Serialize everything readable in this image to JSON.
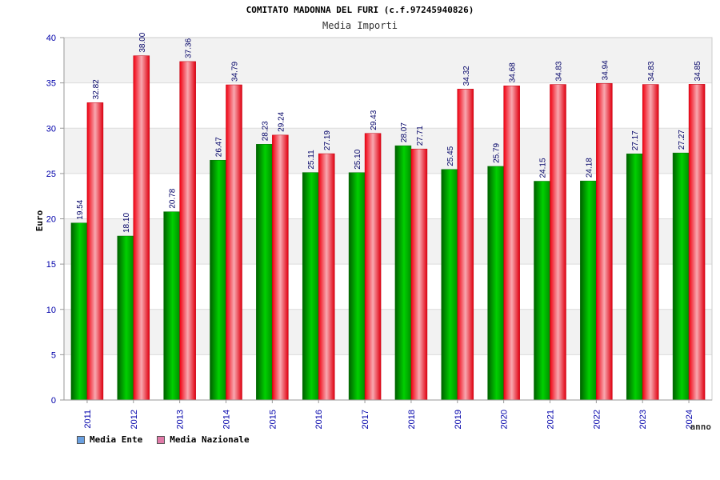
{
  "header": {
    "title": "COMITATO MADONNA DEL FURI (c.f.97245940826)",
    "subtitle": "Media Importi"
  },
  "legend": {
    "items": [
      {
        "label": "Media Ente",
        "color": "#6aa0e0"
      },
      {
        "label": "Media Nazionale",
        "color": "#e07aa8"
      }
    ]
  },
  "chart_data": {
    "type": "bar",
    "categories": [
      "2011",
      "2012",
      "2013",
      "2014",
      "2015",
      "2016",
      "2017",
      "2018",
      "2019",
      "2020",
      "2021",
      "2022",
      "2023",
      "2024"
    ],
    "series": [
      {
        "name": "Media Ente",
        "color": "#00b000",
        "values": [
          19.54,
          18.1,
          20.78,
          26.47,
          28.23,
          25.11,
          25.1,
          28.07,
          25.45,
          25.79,
          24.15,
          24.18,
          27.17,
          27.27
        ],
        "labels": [
          "19.54",
          "18.10",
          "20.78",
          "26.47",
          "28.23",
          "25.11",
          "25.10",
          "28.07",
          "25.45",
          "25.79",
          "24.15",
          "24.18",
          "27.17",
          "27.27"
        ]
      },
      {
        "name": "Media Nazionale",
        "color": "#e00010",
        "values": [
          32.82,
          38.0,
          37.36,
          34.79,
          29.24,
          27.19,
          29.43,
          27.71,
          34.32,
          34.68,
          34.83,
          34.94,
          34.83,
          34.85
        ],
        "labels": [
          "32.82",
          "38.00",
          "37.36",
          "34.79",
          "29.24",
          "27.19",
          "29.43",
          "27.71",
          "34.32",
          "34.68",
          "34.83",
          "34.94",
          "34.83",
          "34.85"
        ]
      }
    ],
    "xlabel": "anno",
    "ylabel": "Euro",
    "ylim": [
      0,
      40
    ],
    "yticks": [
      0,
      5,
      10,
      15,
      20,
      25,
      30,
      35,
      40
    ],
    "grid": true,
    "legend_position": "bottom-left"
  }
}
